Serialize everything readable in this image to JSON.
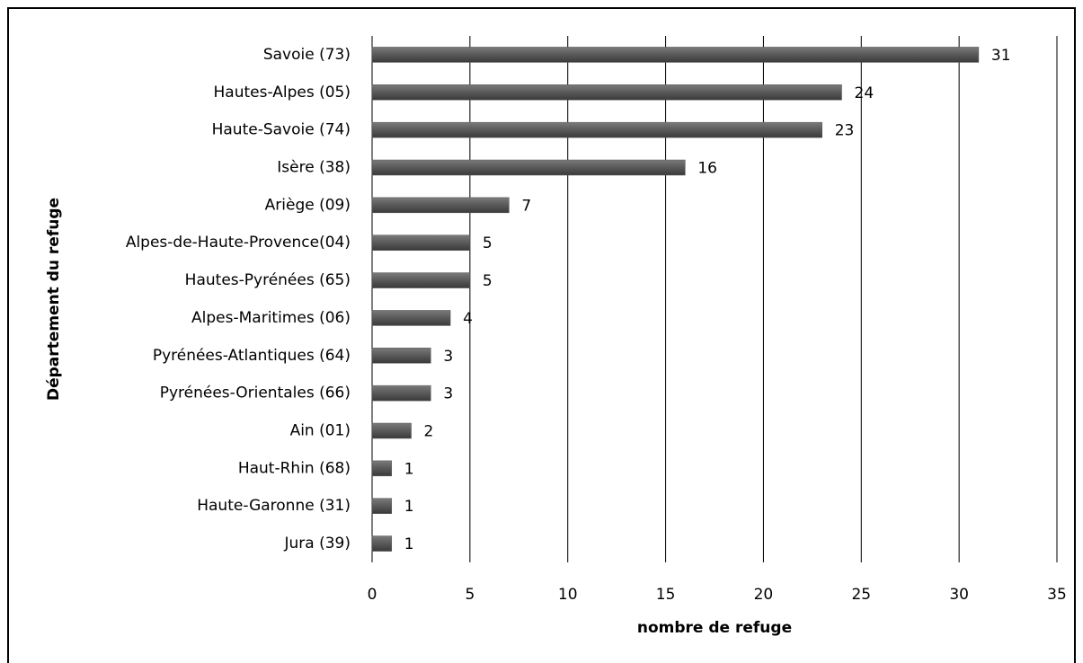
{
  "chart_data": {
    "type": "hbar",
    "x_label": "nombre de refuge",
    "y_label": "Département du refuge",
    "categories": [
      "Savoie (73)",
      "Hautes-Alpes (05)",
      "Haute-Savoie (74)",
      "Isère (38)",
      "Ariège (09)",
      "Alpes-de-Haute-Provence(04)",
      "Hautes-Pyrénées (65)",
      "Alpes-Maritimes (06)",
      "Pyrénées-Atlantiques (64)",
      "Pyrénées-Orientales (66)",
      "Ain (01)",
      "Haut-Rhin (68)",
      "Haute-Garonne (31)",
      "Jura (39)"
    ],
    "values": [
      31,
      24,
      23,
      16,
      7,
      5,
      5,
      4,
      3,
      3,
      2,
      1,
      1,
      1
    ],
    "color": "#595959",
    "xlim": [
      0,
      35
    ],
    "xticks": [
      0,
      5,
      10,
      15,
      20,
      25,
      30,
      35
    ],
    "grid": true
  }
}
